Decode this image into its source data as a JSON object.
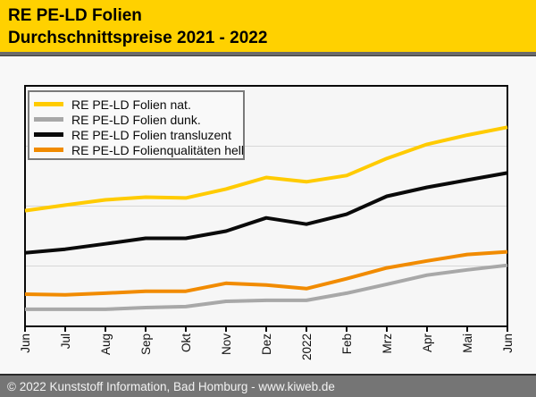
{
  "header": {
    "title_line1": "RE PE-LD Folien",
    "title_line2": "Durchschnittspreise 2021 - 2022",
    "bg_color": "#ffd100"
  },
  "footer": {
    "text": "© 2022 Kunststoff Information, Bad Homburg - www.kiweb.de"
  },
  "chart_data": {
    "type": "line",
    "title": "RE PE-LD Folien Durchschnittspreise 2021 - 2022",
    "categories": [
      "Jun",
      "Jul",
      "Aug",
      "Sep",
      "Okt",
      "Nov",
      "Dez",
      "2022",
      "Feb",
      "Mrz",
      "Apr",
      "Mai",
      "Jun"
    ],
    "x_period": "Jun 2021 - Jun 2022",
    "xlabel": "",
    "ylabel": "",
    "y_axis_unlabeled": true,
    "y_unit": "relative price level, 0 = bottom axis, 100 = top frame",
    "ylim": [
      0,
      100
    ],
    "grid": "3 horizontal gridlines at 25, 50, 75",
    "legend_position": "top-left inside plot area",
    "series": [
      {
        "name": "RE PE-LD Folien nat.",
        "color": "#ffcb00",
        "values": [
          48.1,
          50.4,
          52.6,
          53.7,
          53.4,
          57.1,
          61.9,
          60.1,
          62.7,
          69.8,
          75.7,
          79.5,
          82.8
        ]
      },
      {
        "name": "RE PE-LD Folien dunk.",
        "color": "#a8a8a8",
        "values": [
          7.1,
          7.1,
          7.1,
          7.8,
          8.2,
          10.4,
          10.8,
          10.8,
          13.8,
          17.5,
          21.3,
          23.5,
          25.4
        ]
      },
      {
        "name": "RE PE-LD Folien transluzent",
        "color": "#0a0a0a",
        "values": [
          30.6,
          32.1,
          34.3,
          36.6,
          36.6,
          39.6,
          45.1,
          42.5,
          46.6,
          54.1,
          57.8,
          60.8,
          63.8
        ]
      },
      {
        "name": "RE PE-LD Folienqualitäten hell",
        "color": "#f18b00",
        "values": [
          13.4,
          13.1,
          13.8,
          14.6,
          14.6,
          17.9,
          17.2,
          15.7,
          19.8,
          24.3,
          27.2,
          29.9,
          31.0
        ]
      }
    ]
  }
}
